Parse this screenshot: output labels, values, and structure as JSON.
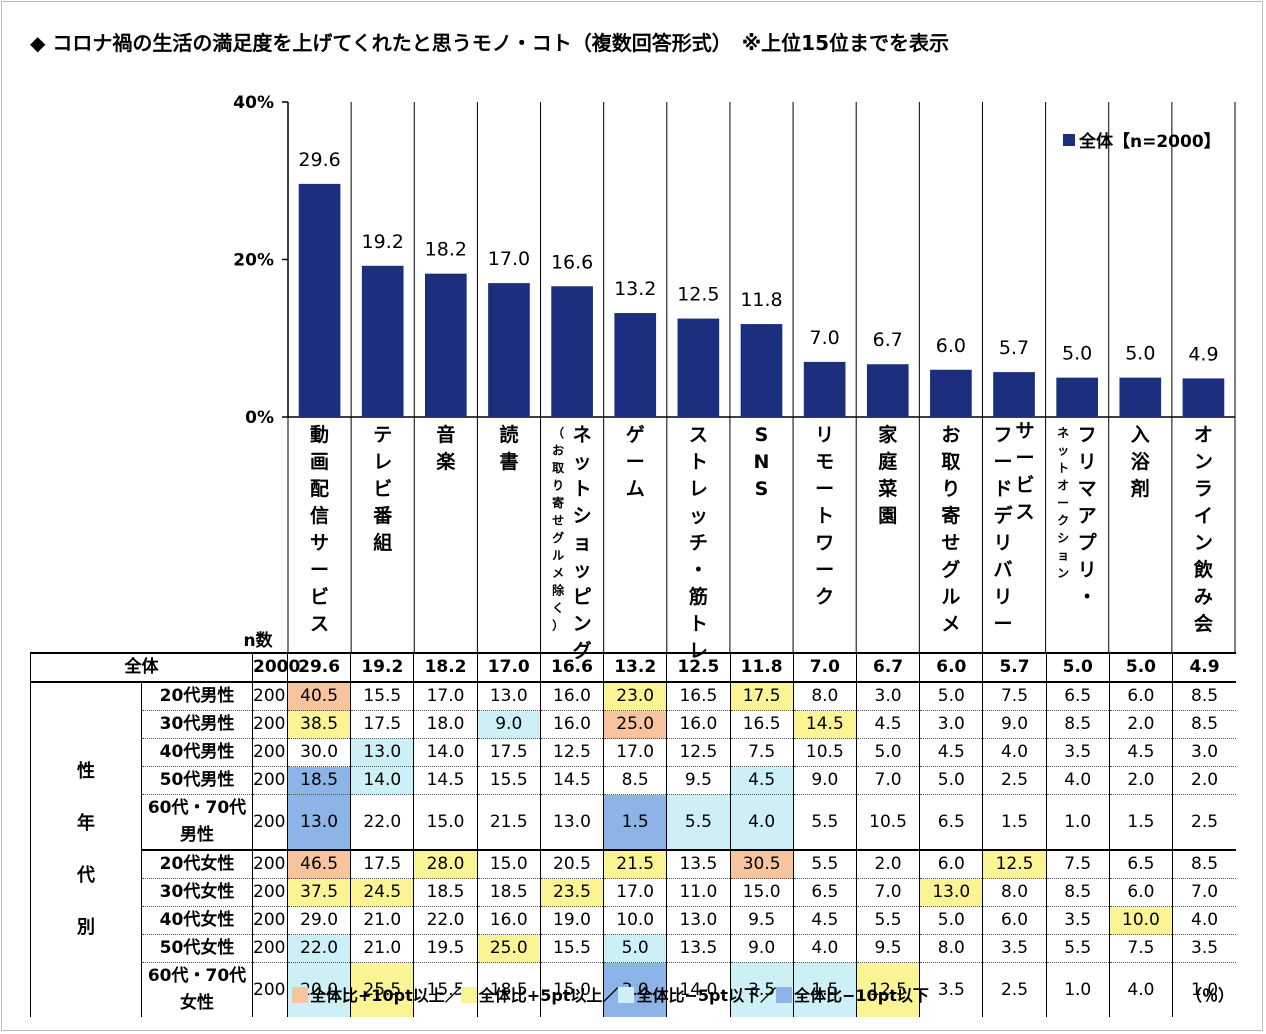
{
  "title": "◆ コロナ禍の生活の満足度を上げてくれたと思うモノ・コト（複数回答形式）　※上位15位までを表示",
  "chart_data": {
    "type": "bar",
    "categories": [
      "動画配信サービス",
      "テレビ番組",
      "音楽",
      "読書",
      "ネットショッピング（お取り寄せグルメ除く）",
      "ゲーム",
      "ストレッチ・筋トレ",
      "SNS",
      "リモートワーク",
      "家庭菜園",
      "お取り寄せグルメ",
      "フードデリバリーサービス",
      "フリマアプリ・ネットオークション",
      "入浴剤",
      "オンライン飲み会"
    ],
    "category_lines": [
      [
        "動画配信サービス"
      ],
      [
        "テレビ番組"
      ],
      [
        "音楽"
      ],
      [
        "読書"
      ],
      [
        "ネットショッピング",
        "（お取り寄せグルメ除く）"
      ],
      [
        "ゲーム"
      ],
      [
        "ストレッチ・筋トレ"
      ],
      [
        "SNS"
      ],
      [
        "リモートワーク"
      ],
      [
        "家庭菜園"
      ],
      [
        "お取り寄せグルメ"
      ],
      [
        "フードデリバリー",
        "サービス"
      ],
      [
        "フリマアプリ・",
        "ネットオークション"
      ],
      [
        "入浴剤"
      ],
      [
        "オンライン飲み会"
      ]
    ],
    "series": [
      {
        "name": "全体【n=2000】",
        "values": [
          29.6,
          19.2,
          18.2,
          17.0,
          16.6,
          13.2,
          12.5,
          11.8,
          7.0,
          6.7,
          6.0,
          5.7,
          5.0,
          5.0,
          4.9
        ]
      }
    ],
    "value_labels": [
      "29.6",
      "19.2",
      "18.2",
      "17.0",
      "16.6",
      "13.2",
      "12.5",
      "11.8",
      "7.0",
      "6.7",
      "6.0",
      "5.7",
      "5.0",
      "5.0",
      "4.9"
    ],
    "ylim": [
      0,
      40
    ],
    "yticks": [
      "0%",
      "20%",
      "40%"
    ],
    "ytick_values": [
      0,
      20,
      40
    ],
    "legend_position": "top-right",
    "bar_color": "#1c2f7e"
  },
  "table": {
    "n_header": "n数",
    "side_label_chars": [
      "性",
      "年",
      "代",
      "別"
    ],
    "rows": [
      {
        "label": "全体",
        "n": "2000",
        "values": [
          "29.6",
          "19.2",
          "18.2",
          "17.0",
          "16.6",
          "13.2",
          "12.5",
          "11.8",
          "7.0",
          "6.7",
          "6.0",
          "5.7",
          "5.0",
          "5.0",
          "4.9"
        ],
        "colors": [
          "",
          "",
          "",
          "",
          "",
          "",
          "",
          "",
          "",
          "",
          "",
          "",
          "",
          "",
          ""
        ]
      },
      {
        "label": "20代男性",
        "n": "200",
        "values": [
          "40.5",
          "15.5",
          "17.0",
          "13.0",
          "16.0",
          "23.0",
          "16.5",
          "17.5",
          "8.0",
          "3.0",
          "5.0",
          "7.5",
          "6.5",
          "6.0",
          "8.5"
        ],
        "colors": [
          "orange",
          "",
          "",
          "",
          "",
          "yellow",
          "",
          "yellow",
          "",
          "",
          "",
          "",
          "",
          "",
          ""
        ]
      },
      {
        "label": "30代男性",
        "n": "200",
        "values": [
          "38.5",
          "17.5",
          "18.0",
          "9.0",
          "16.0",
          "25.0",
          "16.0",
          "16.5",
          "14.5",
          "4.5",
          "3.0",
          "9.0",
          "8.5",
          "2.0",
          "8.5"
        ],
        "colors": [
          "yellow",
          "",
          "",
          "cyan",
          "",
          "orange",
          "",
          "",
          "yellow",
          "",
          "",
          "",
          "",
          "",
          ""
        ]
      },
      {
        "label": "40代男性",
        "n": "200",
        "values": [
          "30.0",
          "13.0",
          "14.0",
          "17.5",
          "12.5",
          "17.0",
          "12.5",
          "7.5",
          "10.5",
          "5.0",
          "4.5",
          "4.0",
          "3.5",
          "4.5",
          "3.0"
        ],
        "colors": [
          "",
          "cyan",
          "",
          "",
          "",
          "",
          "",
          "",
          "",
          "",
          "",
          "",
          "",
          "",
          ""
        ]
      },
      {
        "label": "50代男性",
        "n": "200",
        "values": [
          "18.5",
          "14.0",
          "14.5",
          "15.5",
          "14.5",
          "8.5",
          "9.5",
          "4.5",
          "9.0",
          "7.0",
          "5.0",
          "2.5",
          "4.0",
          "2.0",
          "2.0"
        ],
        "colors": [
          "blue",
          "cyan",
          "",
          "",
          "",
          "",
          "",
          "cyan",
          "",
          "",
          "",
          "",
          "",
          "",
          ""
        ]
      },
      {
        "label": "60代・70代男性",
        "n": "200",
        "values": [
          "13.0",
          "22.0",
          "15.0",
          "21.5",
          "13.0",
          "1.5",
          "5.5",
          "4.0",
          "5.5",
          "10.5",
          "6.5",
          "1.5",
          "1.0",
          "1.5",
          "2.5"
        ],
        "colors": [
          "blue",
          "",
          "",
          "",
          "",
          "blue",
          "cyan",
          "cyan",
          "",
          "",
          "",
          "",
          "",
          "",
          ""
        ]
      },
      {
        "label": "20代女性",
        "n": "200",
        "values": [
          "46.5",
          "17.5",
          "28.0",
          "15.0",
          "20.5",
          "21.5",
          "13.5",
          "30.5",
          "5.5",
          "2.0",
          "6.0",
          "12.5",
          "7.5",
          "6.5",
          "8.5"
        ],
        "colors": [
          "orange",
          "",
          "yellow",
          "",
          "",
          "yellow",
          "",
          "orange",
          "",
          "",
          "",
          "yellow",
          "",
          "",
          ""
        ]
      },
      {
        "label": "30代女性",
        "n": "200",
        "values": [
          "37.5",
          "24.5",
          "18.5",
          "18.5",
          "23.5",
          "17.0",
          "11.0",
          "15.0",
          "6.5",
          "7.0",
          "13.0",
          "8.0",
          "8.5",
          "6.0",
          "7.0"
        ],
        "colors": [
          "yellow",
          "yellow",
          "",
          "",
          "yellow",
          "",
          "",
          "",
          "",
          "",
          "yellow",
          "",
          "",
          "",
          ""
        ]
      },
      {
        "label": "40代女性",
        "n": "200",
        "values": [
          "29.0",
          "21.0",
          "22.0",
          "16.0",
          "19.0",
          "10.0",
          "13.0",
          "9.5",
          "4.5",
          "5.5",
          "5.0",
          "6.0",
          "3.5",
          "10.0",
          "4.0"
        ],
        "colors": [
          "",
          "",
          "",
          "",
          "",
          "",
          "",
          "",
          "",
          "",
          "",
          "",
          "",
          "yellow",
          ""
        ]
      },
      {
        "label": "50代女性",
        "n": "200",
        "values": [
          "22.0",
          "21.0",
          "19.5",
          "25.0",
          "15.5",
          "5.0",
          "13.5",
          "9.0",
          "4.0",
          "9.5",
          "8.0",
          "3.5",
          "5.5",
          "7.5",
          "3.5"
        ],
        "colors": [
          "cyan",
          "",
          "",
          "yellow",
          "",
          "cyan",
          "",
          "",
          "",
          "",
          "",
          "",
          "",
          "",
          ""
        ]
      },
      {
        "label": "60代・70代女性",
        "n": "200",
        "values": [
          "20.0",
          "25.5",
          "15.5",
          "18.5",
          "15.0",
          "3.0",
          "14.0",
          "3.5",
          "1.5",
          "12.5",
          "3.5",
          "2.5",
          "1.0",
          "4.0",
          "1.0"
        ],
        "colors": [
          "cyan",
          "yellow",
          "",
          "",
          "",
          "blue",
          "",
          "cyan",
          "cyan",
          "yellow",
          "",
          "",
          "",
          "",
          ""
        ]
      }
    ]
  },
  "legend_bottom": [
    {
      "label": "全体比+10pt以上／",
      "color": "#f8c49d"
    },
    {
      "label": "全体比+5pt以上／",
      "color": "#fbf495"
    },
    {
      "label": "全体比−5pt以下／",
      "color": "#cdf0f6"
    },
    {
      "label": "全体比−10pt以下",
      "color": "#8db4e6"
    }
  ],
  "unit": "（％）",
  "highlight_colors": {
    "orange": "#f8c49d",
    "yellow": "#fbf495",
    "cyan": "#cdf0f6",
    "blue": "#8db4e6"
  }
}
